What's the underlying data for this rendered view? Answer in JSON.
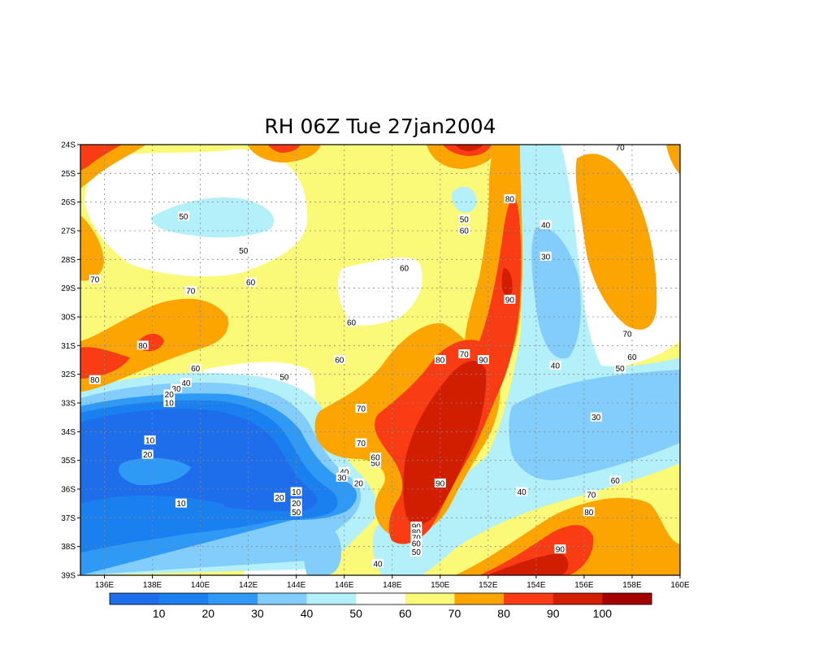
{
  "title": "RH 06Z Tue 27jan2004",
  "colors": {
    "c0_10": "#1e6eeb",
    "c10_20": "#1a80f0",
    "c20_30": "#2f9af6",
    "c30_40": "#82cdfc",
    "c40_50": "#b4f0fa",
    "c50_60": "#ffffff",
    "c60_70": "#fafa78",
    "c70_80": "#fca400",
    "c80_90": "#fa3c14",
    "c90_100": "#d21e00",
    "c100": "#a40000"
  },
  "x_ticks": [
    "136E",
    "138E",
    "140E",
    "142E",
    "144E",
    "146E",
    "148E",
    "150E",
    "152E",
    "154E",
    "156E",
    "158E",
    "160E"
  ],
  "y_ticks": [
    "24S",
    "25S",
    "26S",
    "27S",
    "28S",
    "29S",
    "30S",
    "31S",
    "32S",
    "33S",
    "34S",
    "35S",
    "36S",
    "37S",
    "38S",
    "39S"
  ],
  "colorbar": {
    "labels": [
      "10",
      "20",
      "30",
      "40",
      "50",
      "60",
      "70",
      "80",
      "90",
      "100"
    ],
    "colors": [
      "#1e6eeb",
      "#1a80f0",
      "#2f9af6",
      "#82cdfc",
      "#b4f0fa",
      "#ffffff",
      "#fafa78",
      "#fca400",
      "#fa3c14",
      "#d21e00",
      "#a40000"
    ]
  },
  "contour_labels": [
    {
      "text": "50",
      "lon": 139.3,
      "lat": 26.5
    },
    {
      "text": "50",
      "lon": 141.8,
      "lat": 27.7
    },
    {
      "text": "60",
      "lon": 142.1,
      "lat": 28.8
    },
    {
      "text": "70",
      "lon": 135.6,
      "lat": 28.7
    },
    {
      "text": "70",
      "lon": 139.6,
      "lat": 29.1
    },
    {
      "text": "80",
      "lon": 137.6,
      "lat": 31.0
    },
    {
      "text": "60",
      "lon": 146.3,
      "lat": 30.2
    },
    {
      "text": "60",
      "lon": 148.5,
      "lat": 28.3
    },
    {
      "text": "60",
      "lon": 139.8,
      "lat": 31.8
    },
    {
      "text": "60",
      "lon": 145.8,
      "lat": 31.5
    },
    {
      "text": "50",
      "lon": 143.5,
      "lat": 32.1
    },
    {
      "text": "80",
      "lon": 135.6,
      "lat": 32.2
    },
    {
      "text": "40",
      "lon": 139.4,
      "lat": 32.3
    },
    {
      "text": "30",
      "lon": 139.0,
      "lat": 32.5
    },
    {
      "text": "20",
      "lon": 138.7,
      "lat": 32.7
    },
    {
      "text": "10",
      "lon": 138.7,
      "lat": 33.0
    },
    {
      "text": "10",
      "lon": 137.9,
      "lat": 34.3
    },
    {
      "text": "20",
      "lon": 137.8,
      "lat": 34.8
    },
    {
      "text": "10",
      "lon": 139.2,
      "lat": 36.5
    },
    {
      "text": "20",
      "lon": 143.3,
      "lat": 36.3
    },
    {
      "text": "10",
      "lon": 144.0,
      "lat": 36.1
    },
    {
      "text": "20",
      "lon": 144.0,
      "lat": 36.5
    },
    {
      "text": "50",
      "lon": 144.0,
      "lat": 36.8
    },
    {
      "text": "40",
      "lon": 146.0,
      "lat": 35.4
    },
    {
      "text": "30",
      "lon": 145.9,
      "lat": 35.6
    },
    {
      "text": "20",
      "lon": 146.6,
      "lat": 35.8
    },
    {
      "text": "50",
      "lon": 147.3,
      "lat": 35.1
    },
    {
      "text": "60",
      "lon": 147.3,
      "lat": 34.9
    },
    {
      "text": "70",
      "lon": 146.7,
      "lat": 34.4
    },
    {
      "text": "70",
      "lon": 146.7,
      "lat": 33.2
    },
    {
      "text": "80",
      "lon": 150.0,
      "lat": 31.5
    },
    {
      "text": "70",
      "lon": 151.0,
      "lat": 31.3
    },
    {
      "text": "90",
      "lon": 151.8,
      "lat": 31.5
    },
    {
      "text": "90",
      "lon": 150.0,
      "lat": 35.8
    },
    {
      "text": "50",
      "lon": 151.0,
      "lat": 26.6
    },
    {
      "text": "60",
      "lon": 151.0,
      "lat": 27.0
    },
    {
      "text": "80",
      "lon": 152.9,
      "lat": 25.9
    },
    {
      "text": "90",
      "lon": 152.9,
      "lat": 29.4
    },
    {
      "text": "40",
      "lon": 154.4,
      "lat": 26.8
    },
    {
      "text": "30",
      "lon": 154.4,
      "lat": 27.9
    },
    {
      "text": "40",
      "lon": 154.8,
      "lat": 31.7
    },
    {
      "text": "70",
      "lon": 157.5,
      "lat": 24.1
    },
    {
      "text": "70",
      "lon": 157.8,
      "lat": 30.6
    },
    {
      "text": "60",
      "lon": 158.0,
      "lat": 31.4
    },
    {
      "text": "50",
      "lon": 157.5,
      "lat": 31.8
    },
    {
      "text": "30",
      "lon": 156.5,
      "lat": 33.5
    },
    {
      "text": "60",
      "lon": 157.3,
      "lat": 35.7
    },
    {
      "text": "70",
      "lon": 156.3,
      "lat": 36.2
    },
    {
      "text": "80",
      "lon": 156.2,
      "lat": 36.8
    },
    {
      "text": "40",
      "lon": 153.4,
      "lat": 36.1
    },
    {
      "text": "90",
      "lon": 149.0,
      "lat": 37.3
    },
    {
      "text": "80",
      "lon": 149.0,
      "lat": 37.5
    },
    {
      "text": "70",
      "lon": 149.0,
      "lat": 37.7
    },
    {
      "text": "60",
      "lon": 149.0,
      "lat": 37.9
    },
    {
      "text": "50",
      "lon": 149.0,
      "lat": 38.2
    },
    {
      "text": "40",
      "lon": 147.4,
      "lat": 38.6
    },
    {
      "text": "90",
      "lon": 155.0,
      "lat": 38.1
    }
  ]
}
